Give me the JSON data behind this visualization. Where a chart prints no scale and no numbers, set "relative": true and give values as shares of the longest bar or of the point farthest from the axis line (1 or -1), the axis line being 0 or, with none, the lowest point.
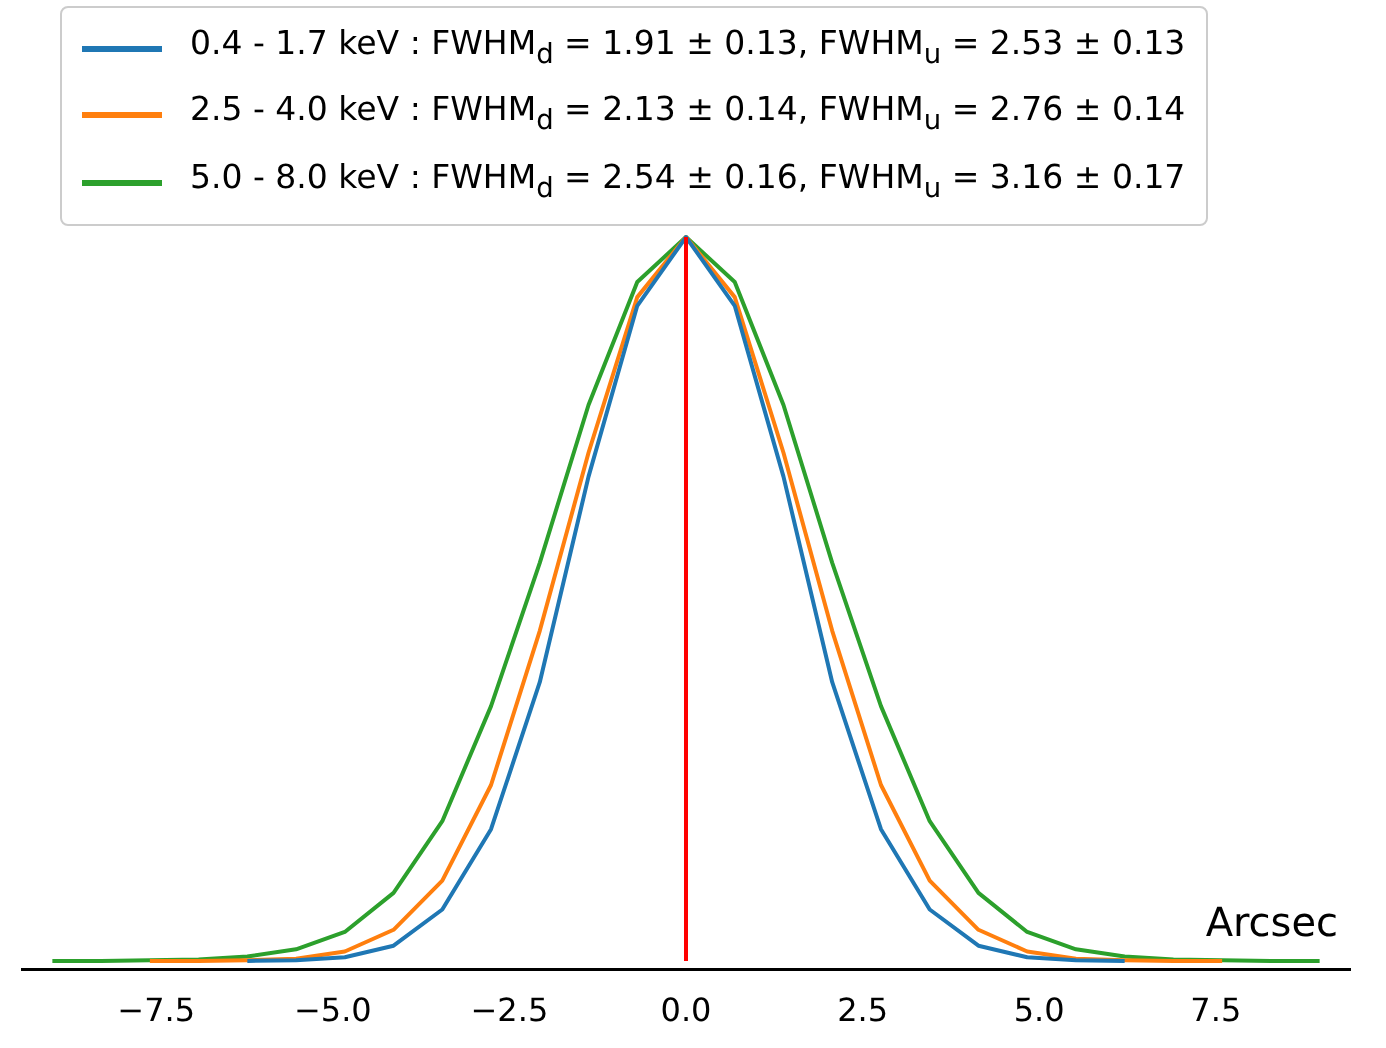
{
  "chart_data": {
    "type": "line",
    "relative": true,
    "xlabel": "Arcsec",
    "x": [
      -8.97,
      -8.28,
      -7.59,
      -6.9,
      -6.21,
      -5.52,
      -4.83,
      -4.14,
      -3.45,
      -2.76,
      -2.07,
      -1.38,
      -0.69,
      0,
      0.69,
      1.38,
      2.07,
      2.76,
      3.45,
      4.14,
      4.83,
      5.52,
      6.21,
      6.9,
      7.59,
      8.28,
      8.97
    ],
    "xlim": [
      -9.4,
      9.4
    ],
    "xticks": [
      {
        "value": -7.5,
        "label": "−7.5"
      },
      {
        "value": -5,
        "label": "−5.0"
      },
      {
        "value": -2.5,
        "label": "−2.5"
      },
      {
        "value": 0,
        "label": "0.0"
      },
      {
        "value": 2.5,
        "label": "2.5"
      },
      {
        "value": 5,
        "label": "5.0"
      },
      {
        "value": 7.5,
        "label": "7.5"
      }
    ],
    "series": [
      {
        "name": "0.4 - 1.7 keV : FWHM$_{d}$ = 1.91 ± 0.13, FWHM$_{u}$ = 2.53 ± 0.13",
        "color": "#1f77b4",
        "values": [
          null,
          null,
          null,
          null,
          0,
          0.001,
          0.005,
          0.021,
          0.071,
          0.182,
          0.385,
          0.669,
          0.905,
          1,
          0.905,
          0.669,
          0.385,
          0.182,
          0.071,
          0.021,
          0.005,
          0.001,
          0,
          null,
          null,
          null,
          null
        ]
      },
      {
        "name": "2.5 - 4.0 keV :  FWHM$_{d}$ = 2.13 ± 0.14, FWHM$_{u}$ = 2.76 ± 0.14",
        "color": "#ff7f0e",
        "values": [
          null,
          null,
          0,
          0,
          0.001,
          0.003,
          0.013,
          0.043,
          0.111,
          0.243,
          0.456,
          0.702,
          0.917,
          1,
          0.917,
          0.702,
          0.456,
          0.243,
          0.111,
          0.043,
          0.013,
          0.003,
          0.001,
          0,
          0,
          null,
          null
        ]
      },
      {
        "name": "5.0 - 8.0 keV : FWHM$_{d}$ = 2.54 ± 0.16, FWHM$_{u}$ = 3.16 ± 0.17",
        "color": "#2ca02c",
        "values": [
          0,
          0,
          0.001,
          0.002,
          0.006,
          0.016,
          0.04,
          0.094,
          0.193,
          0.352,
          0.55,
          0.768,
          0.938,
          1,
          0.938,
          0.768,
          0.55,
          0.352,
          0.193,
          0.094,
          0.04,
          0.016,
          0.006,
          0.002,
          0.001,
          0,
          0
        ]
      }
    ],
    "ref_lines": [
      {
        "axis": "x",
        "value": 0,
        "color": "#ff0000"
      }
    ],
    "legend": "top",
    "marker": "none",
    "line_style": "solid",
    "grid": false
  }
}
